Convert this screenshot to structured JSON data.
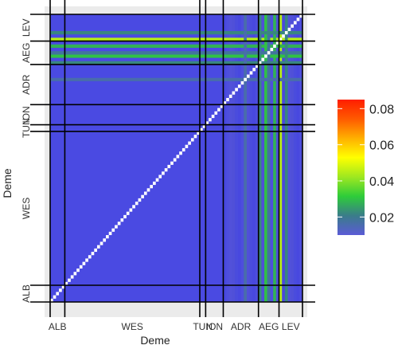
{
  "chart_data": {
    "type": "heatmap",
    "xlabel": "Deme",
    "ylabel": "Deme",
    "groups": [
      "ALB",
      "WES",
      "TUN",
      "ION",
      "ADR",
      "AEG",
      "LEV"
    ],
    "group_sizes": [
      5,
      46,
      2,
      6,
      12,
      7,
      8
    ],
    "group_labels_x": [
      "ALB",
      "WES",
      "TUN",
      "ION",
      "ADR",
      "AEG",
      "LEV"
    ],
    "group_labels_y": [
      "ALB",
      "WES",
      "TUN",
      "ION",
      "ADR",
      "AEG",
      "LEV"
    ],
    "legend": {
      "ticks": [
        "0.02",
        "0.04",
        "0.06",
        "0.08"
      ],
      "tick_values": [
        0.02,
        0.04,
        0.06,
        0.08
      ],
      "range": [
        0.01,
        0.085
      ],
      "colors": [
        "#5b5bd6",
        "#3a7c8a",
        "#2ecc3a",
        "#9ee820",
        "#ffff00",
        "#ffb000",
        "#ff5a00",
        "#ff1e00"
      ]
    },
    "background_value": 0.006,
    "highlight_rows": [
      {
        "index": 78,
        "level": 0.045
      },
      {
        "index": 76,
        "level": 0.028
      },
      {
        "index": 73,
        "level": 0.03
      },
      {
        "index": 71,
        "level": 0.022
      },
      {
        "index": 74,
        "level": 0.018
      },
      {
        "index": 80,
        "level": 0.022
      },
      {
        "index": 66,
        "level": 0.016
      }
    ],
    "grid": true
  },
  "axes": {
    "x_title": "Deme",
    "y_title": "Deme"
  },
  "colors": {
    "panel_background": "#ebebeb",
    "separator": "#000000",
    "diagonal": "#ffffff"
  }
}
